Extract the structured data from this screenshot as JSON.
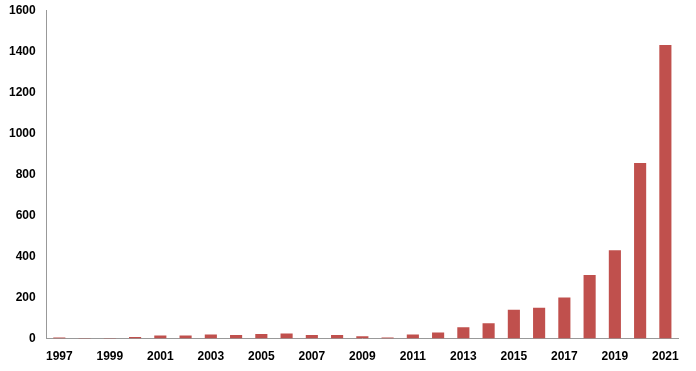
{
  "chart_data": {
    "type": "bar",
    "categories": [
      "1997",
      null,
      "1999",
      null,
      "2001",
      null,
      "2003",
      null,
      "2005",
      null,
      "2007",
      null,
      "2009",
      null,
      "2011",
      null,
      "2013",
      null,
      "2015",
      null,
      "2017",
      null,
      "2019",
      null,
      "2021"
    ],
    "values": [
      5,
      3,
      3,
      8,
      15,
      15,
      20,
      18,
      22,
      25,
      18,
      18,
      12,
      5,
      20,
      30,
      55,
      75,
      140,
      150,
      200,
      310,
      430,
      855,
      1430
    ],
    "color": "#c0504d",
    "ylim": [
      0,
      1600
    ],
    "yticks": [
      0,
      200,
      400,
      600,
      800,
      1000,
      1200,
      1400,
      1600
    ],
    "grid": false
  }
}
